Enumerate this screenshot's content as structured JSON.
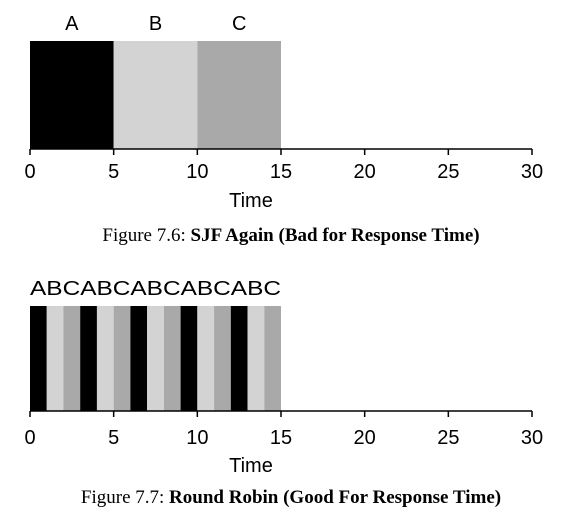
{
  "colors": {
    "A": "#000000",
    "B": "#d3d3d3",
    "C": "#a9a9a9",
    "axis": "#000000"
  },
  "chart_data": [
    {
      "type": "gantt",
      "caption_prefix": "Figure 7.6: ",
      "caption_title": "SJF Again (Bad for Response Time)",
      "xlabel": "Time",
      "xlim": [
        0,
        30
      ],
      "xticks": [
        0,
        5,
        10,
        15,
        20,
        25,
        30
      ],
      "segments": [
        {
          "job": "A",
          "start": 0,
          "end": 5
        },
        {
          "job": "B",
          "start": 5,
          "end": 10
        },
        {
          "job": "C",
          "start": 10,
          "end": 15
        }
      ],
      "top_labels": [
        {
          "text": "A",
          "x": 2.5
        },
        {
          "text": "B",
          "x": 7.5
        },
        {
          "text": "C",
          "x": 12.5
        }
      ]
    },
    {
      "type": "gantt",
      "caption_prefix": "Figure 7.7: ",
      "caption_title": "Round Robin (Good For Response Time)",
      "xlabel": "Time",
      "xlim": [
        0,
        30
      ],
      "xticks": [
        0,
        5,
        10,
        15,
        20,
        25,
        30
      ],
      "top_text": "ABCABCABCABCABC",
      "segments": [
        {
          "job": "A",
          "start": 0,
          "end": 1
        },
        {
          "job": "B",
          "start": 1,
          "end": 2
        },
        {
          "job": "C",
          "start": 2,
          "end": 3
        },
        {
          "job": "A",
          "start": 3,
          "end": 4
        },
        {
          "job": "B",
          "start": 4,
          "end": 5
        },
        {
          "job": "C",
          "start": 5,
          "end": 6
        },
        {
          "job": "A",
          "start": 6,
          "end": 7
        },
        {
          "job": "B",
          "start": 7,
          "end": 8
        },
        {
          "job": "C",
          "start": 8,
          "end": 9
        },
        {
          "job": "A",
          "start": 9,
          "end": 10
        },
        {
          "job": "B",
          "start": 10,
          "end": 11
        },
        {
          "job": "C",
          "start": 11,
          "end": 12
        },
        {
          "job": "A",
          "start": 12,
          "end": 13
        },
        {
          "job": "B",
          "start": 13,
          "end": 14
        },
        {
          "job": "C",
          "start": 14,
          "end": 15
        }
      ]
    }
  ]
}
